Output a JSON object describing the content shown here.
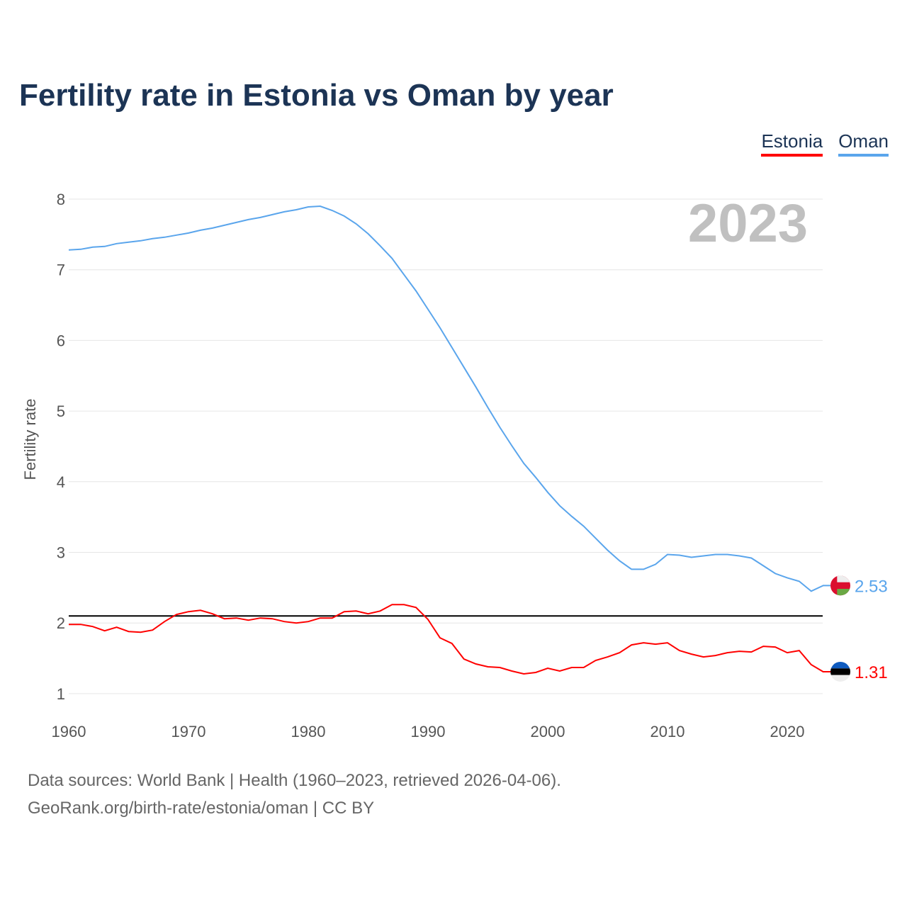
{
  "title": "Fertility rate in Estonia vs Oman by year",
  "legend": [
    {
      "label": "Estonia",
      "color": "#ff0000"
    },
    {
      "label": "Oman",
      "color": "#5aa5ec"
    }
  ],
  "year_label": "2023",
  "footer": {
    "line1": "Data sources: World Bank | Health (1960–2023, retrieved 2026-04-06).",
    "line2": "GeoRank.org/birth-rate/estonia/oman | CC BY"
  },
  "chart_data": {
    "type": "line",
    "title": "Fertility rate in Estonia vs Oman by year",
    "xlabel": "",
    "ylabel": "Fertility rate",
    "xlim": [
      1960,
      2023
    ],
    "ylim": [
      0.8,
      8.2
    ],
    "xticks": [
      1960,
      1970,
      1980,
      1990,
      2000,
      2010,
      2020
    ],
    "yticks": [
      1,
      2,
      3,
      4,
      5,
      6,
      7,
      8
    ],
    "reference_line": 2.1,
    "x_start": 1960,
    "series": [
      {
        "name": "Estonia",
        "color": "#ff0000",
        "end_label": "1.31",
        "values": [
          1.98,
          1.98,
          1.95,
          1.89,
          1.94,
          1.88,
          1.87,
          1.9,
          2.02,
          2.12,
          2.16,
          2.18,
          2.13,
          2.06,
          2.07,
          2.04,
          2.07,
          2.06,
          2.02,
          2.0,
          2.02,
          2.07,
          2.07,
          2.16,
          2.17,
          2.13,
          2.17,
          2.26,
          2.26,
          2.22,
          2.05,
          1.79,
          1.71,
          1.49,
          1.42,
          1.38,
          1.37,
          1.32,
          1.28,
          1.3,
          1.36,
          1.32,
          1.37,
          1.37,
          1.47,
          1.52,
          1.58,
          1.69,
          1.72,
          1.7,
          1.72,
          1.61,
          1.56,
          1.52,
          1.54,
          1.58,
          1.6,
          1.59,
          1.67,
          1.66,
          1.58,
          1.61,
          1.41,
          1.31
        ]
      },
      {
        "name": "Oman",
        "color": "#5aa5ec",
        "end_label": "2.53",
        "values": [
          7.28,
          7.29,
          7.32,
          7.33,
          7.37,
          7.39,
          7.41,
          7.44,
          7.46,
          7.49,
          7.52,
          7.56,
          7.59,
          7.63,
          7.67,
          7.71,
          7.74,
          7.78,
          7.82,
          7.85,
          7.89,
          7.9,
          7.84,
          7.76,
          7.65,
          7.51,
          7.34,
          7.16,
          6.93,
          6.7,
          6.44,
          6.18,
          5.9,
          5.62,
          5.34,
          5.05,
          4.77,
          4.51,
          4.26,
          4.06,
          3.85,
          3.66,
          3.51,
          3.37,
          3.2,
          3.03,
          2.88,
          2.76,
          2.76,
          2.83,
          2.97,
          2.96,
          2.93,
          2.95,
          2.97,
          2.97,
          2.95,
          2.92,
          2.81,
          2.7,
          2.64,
          2.59,
          2.45,
          2.53
        ]
      }
    ]
  }
}
